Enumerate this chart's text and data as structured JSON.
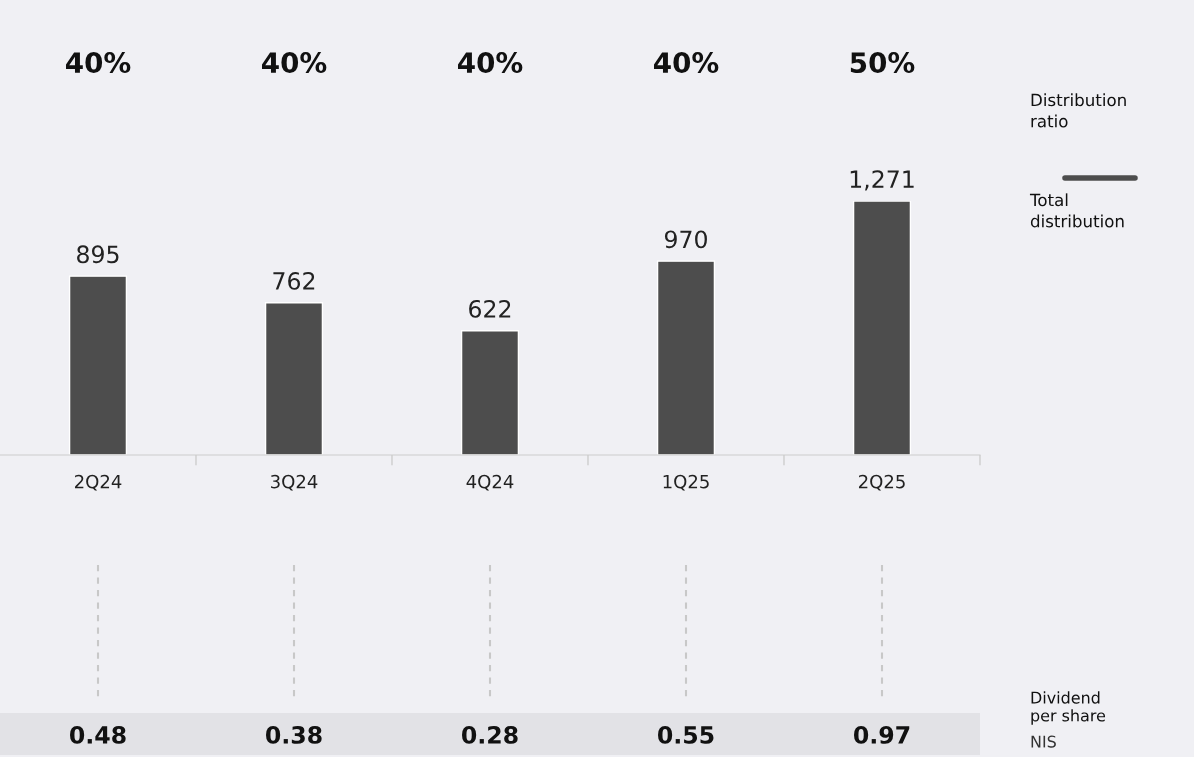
{
  "chart_data": {
    "type": "bar",
    "categories": [
      "2Q24",
      "3Q24",
      "4Q24",
      "1Q25",
      "2Q25"
    ],
    "values": [
      895,
      762,
      622,
      970,
      1271
    ],
    "value_labels": [
      "895",
      "762",
      "622",
      "970",
      "1,271"
    ],
    "color": "#4d4d4d",
    "annotations": [
      "40%",
      "40%",
      "40%",
      "40%",
      "50%",
      "0.48",
      "0.38",
      "0.28",
      "0.55",
      "0.97",
      "Distribution\nratio",
      "Total\ndistribution",
      "Dividend\nper share",
      "NIS"
    ]
  }
}
